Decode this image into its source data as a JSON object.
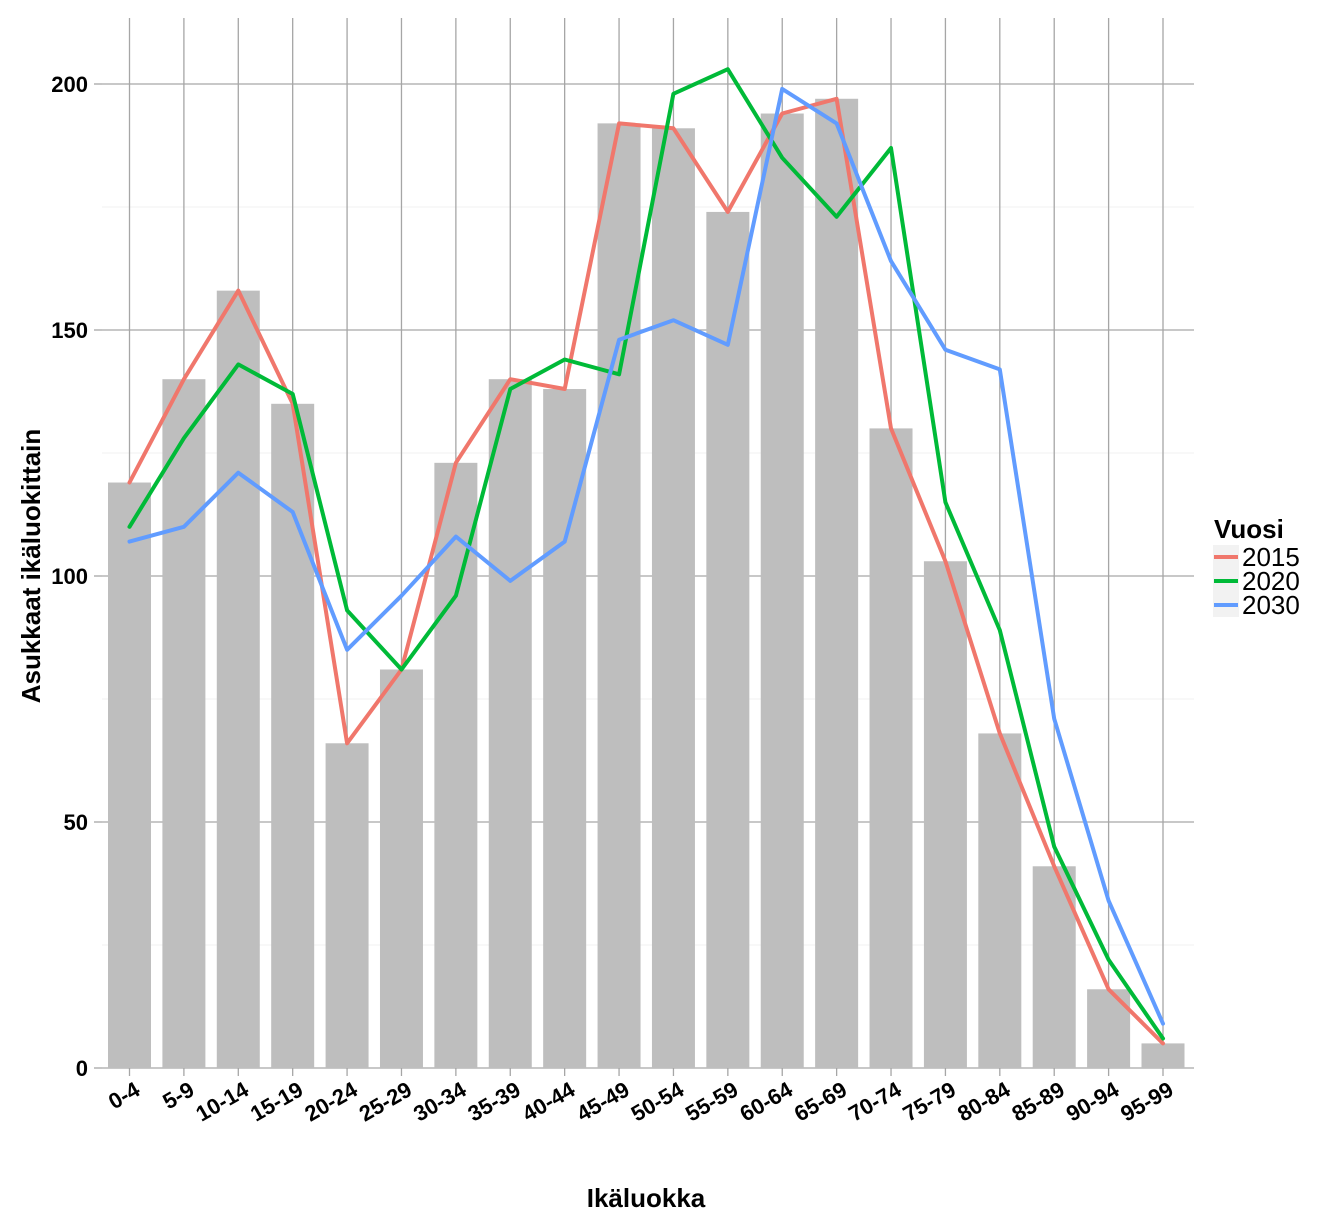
{
  "chart_data": {
    "type": "bar",
    "title": "",
    "xlabel": "Ikäluokka",
    "ylabel": "Asukkaat ikäluokittain",
    "ylim": [
      0,
      210
    ],
    "yticks": [
      0,
      50,
      100,
      150,
      200
    ],
    "ytick_labels": [
      "0",
      "50",
      "100",
      "150",
      "200"
    ],
    "grid": true,
    "categories": [
      "0-4",
      "5-9",
      "10-14",
      "15-19",
      "20-24",
      "25-29",
      "30-34",
      "35-39",
      "40-44",
      "45-49",
      "50-54",
      "55-59",
      "60-64",
      "65-69",
      "70-74",
      "75-79",
      "80-84",
      "85-89",
      "90-94",
      "95-99"
    ],
    "bars": {
      "name": "2015",
      "color": "#bebebe",
      "values": [
        119,
        140,
        158,
        135,
        66,
        81,
        123,
        140,
        138,
        192,
        191,
        174,
        194,
        197,
        130,
        103,
        68,
        41,
        16,
        5
      ]
    },
    "series": [
      {
        "name": "2015",
        "color": "#f0776c",
        "values": [
          119,
          140,
          158,
          135,
          66,
          81,
          123,
          140,
          138,
          192,
          191,
          174,
          194,
          197,
          130,
          103,
          68,
          41,
          16,
          5
        ]
      },
      {
        "name": "2020",
        "color": "#00ba38",
        "values": [
          110,
          128,
          143,
          137,
          93,
          81,
          96,
          138,
          144,
          141,
          198,
          203,
          185,
          173,
          187,
          115,
          89,
          45,
          22,
          6
        ]
      },
      {
        "name": "2030",
        "color": "#619cff",
        "values": [
          107,
          110,
          121,
          113,
          85,
          96,
          108,
          99,
          107,
          148,
          152,
          147,
          199,
          192,
          164,
          146,
          142,
          71,
          34,
          9
        ]
      }
    ],
    "legend": {
      "title": "Vuosi",
      "position": "right",
      "entries": [
        "2015",
        "2020",
        "2030"
      ]
    }
  }
}
